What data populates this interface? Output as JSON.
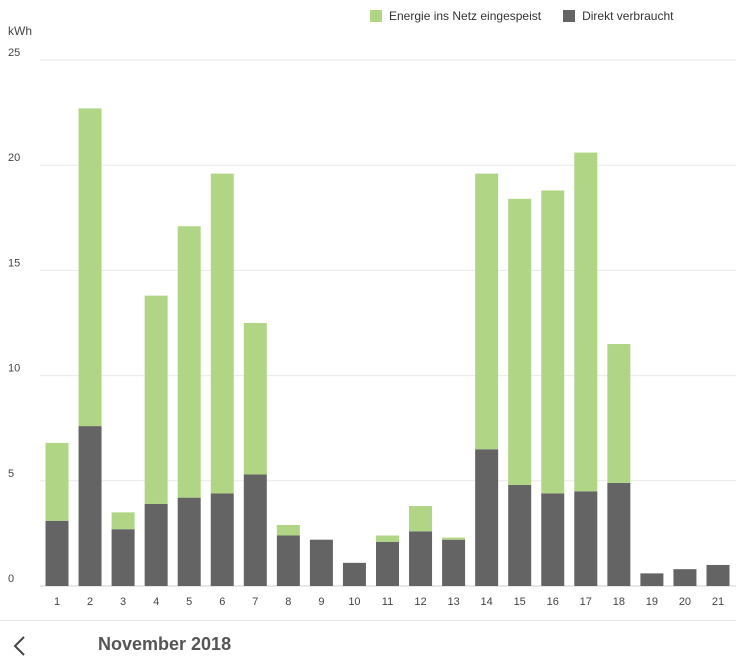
{
  "legend": {
    "fed_in": "Energie ins Netz eingespeist",
    "direct": "Direkt verbraucht"
  },
  "footer": {
    "month": "November 2018",
    "back_icon": "chevron-left-icon"
  },
  "colors": {
    "fed_in": "#afd585",
    "direct": "#646464",
    "grid": "#e9e9e9"
  },
  "chart_data": {
    "type": "bar",
    "stacked": true,
    "ylabel": "kWh",
    "ylim": [
      0,
      25
    ],
    "yticks": [
      0,
      5,
      10,
      15,
      20,
      25
    ],
    "categories": [
      "1",
      "2",
      "3",
      "4",
      "5",
      "6",
      "7",
      "8",
      "9",
      "10",
      "11",
      "12",
      "13",
      "14",
      "15",
      "16",
      "17",
      "18",
      "19",
      "20",
      "21"
    ],
    "series": [
      {
        "name": "Direkt verbraucht",
        "values": [
          3.1,
          7.6,
          2.7,
          3.9,
          4.2,
          4.4,
          5.3,
          2.4,
          2.2,
          1.1,
          2.1,
          2.6,
          2.2,
          6.5,
          4.8,
          4.4,
          4.5,
          4.9,
          0.6,
          0.8,
          1.0
        ]
      },
      {
        "name": "Energie ins Netz eingespeist",
        "values": [
          3.7,
          15.1,
          0.8,
          9.9,
          12.9,
          15.2,
          7.2,
          0.5,
          0,
          0,
          0.3,
          1.2,
          0.1,
          13.1,
          13.6,
          14.4,
          16.1,
          6.6,
          0,
          0,
          0
        ]
      }
    ],
    "grid": true,
    "legend_position": "top-right"
  }
}
